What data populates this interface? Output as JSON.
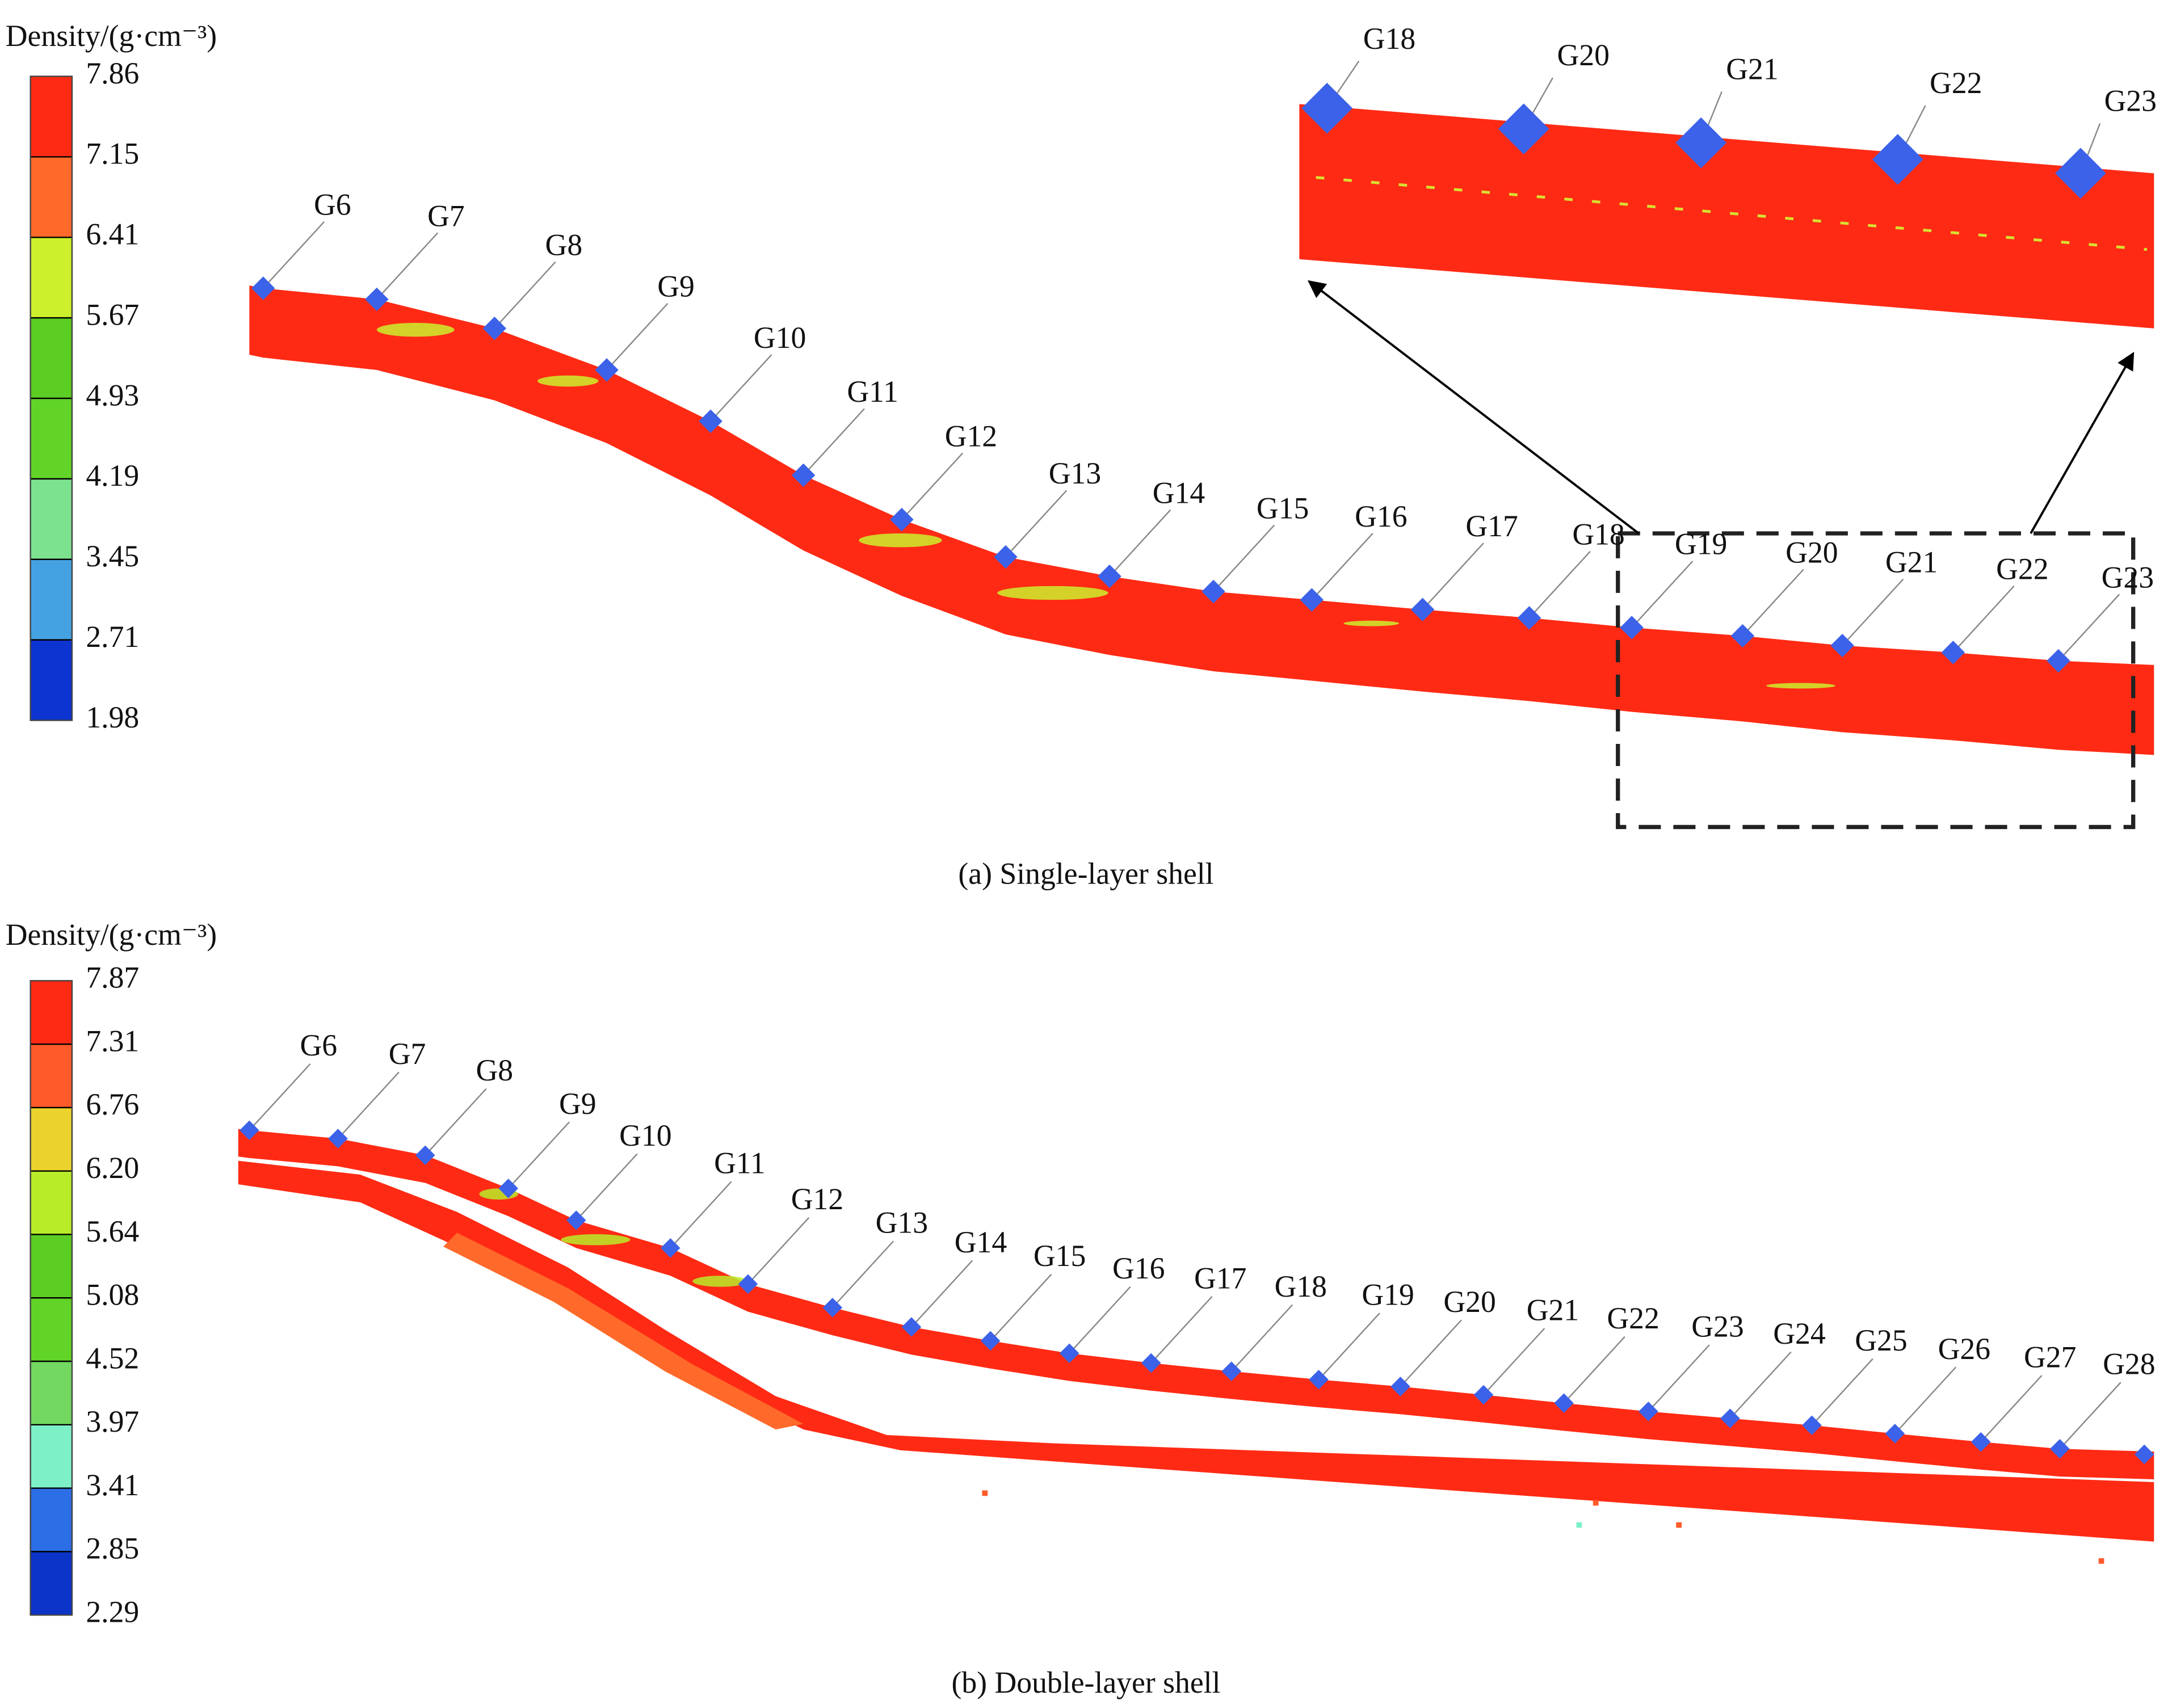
{
  "panel_a": {
    "legend_title": "Density/(g·cm⁻³)",
    "legend_labels": [
      "7.86",
      "7.15",
      "6.41",
      "5.67",
      "4.93",
      "4.19",
      "3.45",
      "2.71",
      "1.98"
    ],
    "gauges": [
      "G6",
      "G7",
      "G8",
      "G9",
      "G10",
      "G11",
      "G12",
      "G13",
      "G14",
      "G15",
      "G16",
      "G17",
      "G18",
      "G19",
      "G20",
      "G21",
      "G22",
      "G23"
    ],
    "inset_gauges": [
      "G18",
      "G20",
      "G21",
      "G22",
      "G23"
    ],
    "caption": "(a) Single-layer shell"
  },
  "panel_b": {
    "legend_title": "Density/(g·cm⁻³)",
    "legend_labels": [
      "7.87",
      "7.31",
      "6.76",
      "6.20",
      "5.64",
      "5.08",
      "4.52",
      "3.97",
      "3.41",
      "2.85",
      "2.29"
    ],
    "gauges": [
      "G6",
      "G7",
      "G8",
      "G9",
      "G10",
      "G11",
      "G12",
      "G13",
      "G14",
      "G15",
      "G16",
      "G17",
      "G18",
      "G19",
      "G20",
      "G21",
      "G22",
      "G23",
      "G24",
      "G25",
      "G26",
      "G27",
      "G28"
    ],
    "caption": "(b) Double-layer shell"
  }
}
